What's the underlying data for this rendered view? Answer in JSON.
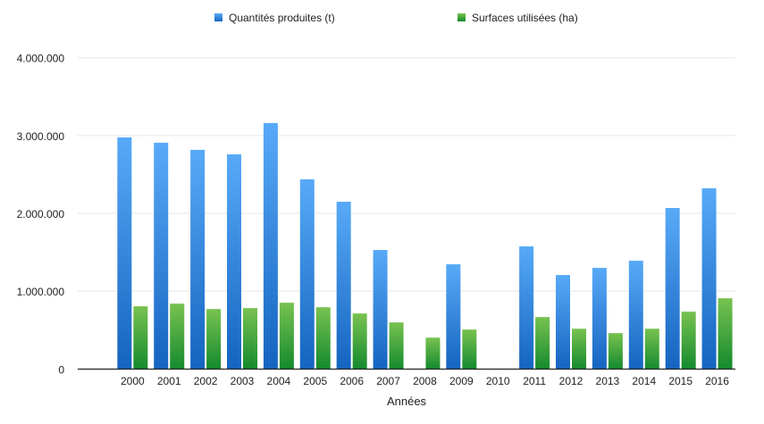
{
  "chart_data": {
    "type": "bar",
    "title": "",
    "xlabel": "Années",
    "ylabel": "",
    "ylim": [
      0,
      4000000
    ],
    "yticks": [
      0,
      1000000,
      2000000,
      3000000,
      4000000
    ],
    "ytick_labels": [
      "0",
      "1.000.000",
      "2.000.000",
      "3.000.000",
      "4.000.000"
    ],
    "grid": true,
    "legend_position": "top-center",
    "categories": [
      "2000",
      "2001",
      "2002",
      "2003",
      "2004",
      "2005",
      "2006",
      "2007",
      "2008",
      "2009",
      "2010",
      "2011",
      "2012",
      "2013",
      "2014",
      "2015",
      "2016"
    ],
    "series": [
      {
        "name": "Quantités produites (t)",
        "color": "#3a8ee6",
        "values": [
          2977000,
          2908000,
          2816000,
          2759000,
          3161000,
          2437000,
          2149000,
          1529000,
          null,
          1345000,
          null,
          1575000,
          1207000,
          1299000,
          1391000,
          2069000,
          2322000
        ]
      },
      {
        "name": "Surfaces utilisées (ha)",
        "color": "#4caf3f",
        "values": [
          805000,
          839000,
          770000,
          782000,
          851000,
          793000,
          713000,
          598000,
          402000,
          506000,
          null,
          667000,
          517000,
          460000,
          517000,
          736000,
          908000
        ]
      }
    ]
  }
}
